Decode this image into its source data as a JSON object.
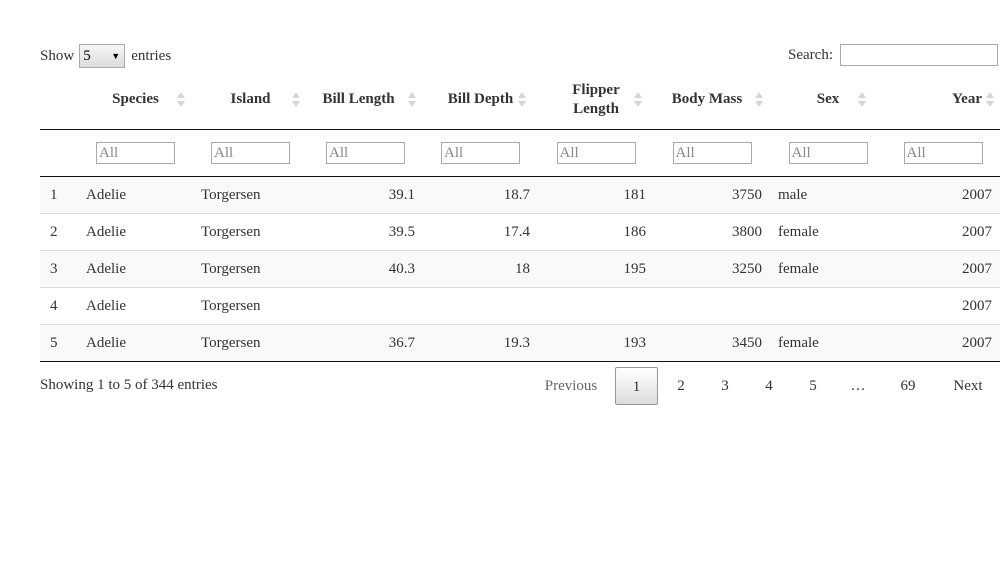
{
  "length_menu": {
    "show_label": "Show",
    "value": "5",
    "entries_label": "entries"
  },
  "search": {
    "label": "Search:",
    "value": ""
  },
  "table": {
    "columns": [
      "",
      "Species",
      "Island",
      "Bill Length",
      "Bill Depth",
      "Flipper Length",
      "Body Mass",
      "Sex",
      "Year"
    ],
    "header_lines": {
      "flipper_line1": "Flipper",
      "flipper_line2": "Length"
    },
    "filter_placeholder": "All",
    "rows": [
      [
        "1",
        "Adelie",
        "Torgersen",
        "39.1",
        "18.7",
        "181",
        "3750",
        "male",
        "2007"
      ],
      [
        "2",
        "Adelie",
        "Torgersen",
        "39.5",
        "17.4",
        "186",
        "3800",
        "female",
        "2007"
      ],
      [
        "3",
        "Adelie",
        "Torgersen",
        "40.3",
        "18",
        "195",
        "3250",
        "female",
        "2007"
      ],
      [
        "4",
        "Adelie",
        "Torgersen",
        "",
        "",
        "",
        "",
        "",
        "2007"
      ],
      [
        "5",
        "Adelie",
        "Torgersen",
        "36.7",
        "19.3",
        "193",
        "3450",
        "female",
        "2007"
      ]
    ]
  },
  "info": "Showing 1 to 5 of 344 entries",
  "pagination": {
    "previous": "Previous",
    "pages": [
      "1",
      "2",
      "3",
      "4",
      "5",
      "…",
      "69"
    ],
    "current": "1",
    "next": "Next"
  }
}
